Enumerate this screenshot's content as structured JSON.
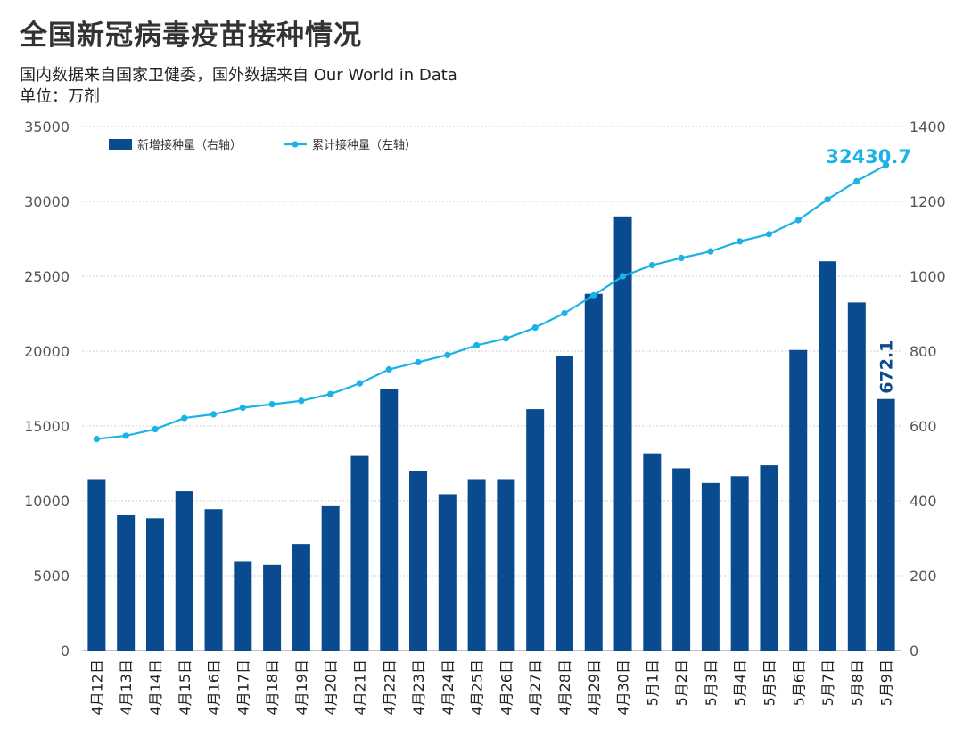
{
  "title": "全国新冠病毒疫苗接种情况",
  "subtitle": "国内数据来自国家卫健委，国外数据来自 Our World in Data",
  "unit": "单位：万剂",
  "colors": {
    "bar": "#0a4a8f",
    "line": "#1bb3e6",
    "grid": "#cfcfcf"
  },
  "chart_data": {
    "type": "bar+line",
    "categories": [
      "4月12日",
      "4月13日",
      "4月14日",
      "4月15日",
      "4月16日",
      "4月17日",
      "4月18日",
      "4月19日",
      "4月20日",
      "4月21日",
      "4月22日",
      "4月23日",
      "4月24日",
      "4月25日",
      "4月26日",
      "4月27日",
      "4月28日",
      "4月29日",
      "4月30日",
      "5月1日",
      "5月2日",
      "5月3日",
      "5月4日",
      "5月5日",
      "5月6日",
      "5月7日",
      "5月8日",
      "5月9日"
    ],
    "series": [
      {
        "name": "新增接种量（右轴）",
        "type": "bar",
        "axis": "right",
        "values": [
          456,
          362,
          354,
          426,
          378,
          237,
          229,
          283,
          386,
          520,
          700,
          480,
          418,
          456,
          456,
          645,
          788,
          953,
          1160,
          527,
          487,
          448,
          466,
          495,
          803,
          1040,
          930,
          672.1
        ]
      },
      {
        "name": "累计接种量（左轴）",
        "type": "line",
        "axis": "left",
        "values": [
          14130,
          14350,
          14790,
          15530,
          15780,
          16220,
          16450,
          16680,
          17130,
          17850,
          18780,
          19260,
          19740,
          20390,
          20840,
          21570,
          22530,
          23730,
          25000,
          25740,
          26220,
          26660,
          27330,
          27810,
          28750,
          30130,
          31350,
          32430.7
        ]
      }
    ],
    "ylim_left": [
      0,
      35000
    ],
    "yticks_left": [
      0,
      5000,
      10000,
      15000,
      20000,
      25000,
      30000,
      35000
    ],
    "ylim_right": [
      0,
      1400
    ],
    "yticks_right": [
      0,
      200,
      400,
      600,
      800,
      1000,
      1200,
      1400
    ],
    "annotations": {
      "last_line_label": "32430.7",
      "last_bar_label": "672.1"
    },
    "grid": true,
    "legend_position": "top-left"
  }
}
